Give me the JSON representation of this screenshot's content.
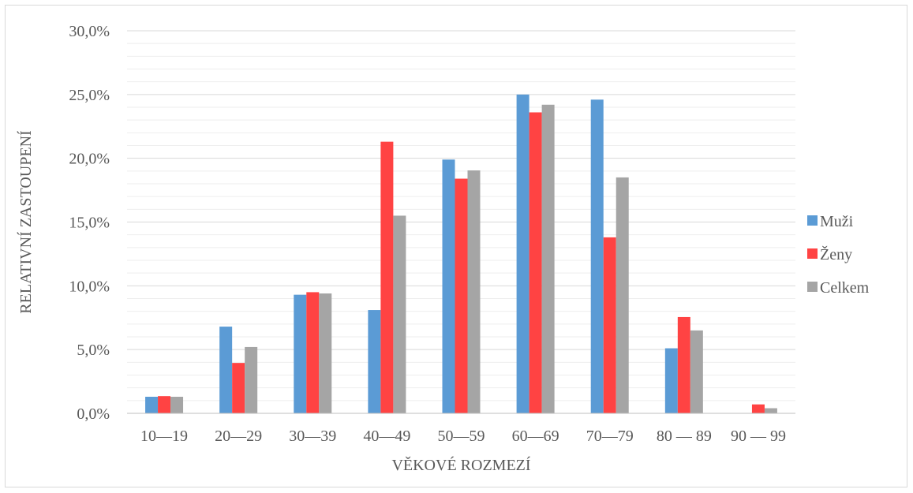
{
  "chart_data": {
    "type": "bar",
    "title": "",
    "xlabel": "VĚKOVÉ ROZMEZÍ",
    "ylabel": "RELATIVNÍ ZASTOUPENÍ",
    "ylim": [
      0,
      30
    ],
    "y_major_step": 5,
    "y_minor_step": 1,
    "y_tick_suffix": "%",
    "decimal_separator": ",",
    "grid": true,
    "legend_position": "right",
    "categories": [
      "10—19",
      "20—29",
      "30—39",
      "40—49",
      "50—59",
      "60—69",
      "70—79",
      "80 — 89",
      "90 — 99"
    ],
    "series": [
      {
        "name": "Muži",
        "color": "#5b9bd5",
        "values": [
          1.3,
          6.8,
          9.3,
          8.1,
          19.9,
          25.0,
          24.6,
          5.1,
          0.0
        ]
      },
      {
        "name": "Ženy",
        "color": "#ff4343",
        "values": [
          1.35,
          3.95,
          9.5,
          21.3,
          18.4,
          23.6,
          13.8,
          7.55,
          0.7
        ]
      },
      {
        "name": "Celkem",
        "color": "#a5a5a5",
        "values": [
          1.3,
          5.2,
          9.4,
          15.5,
          19.05,
          24.2,
          18.5,
          6.5,
          0.4
        ]
      }
    ]
  }
}
